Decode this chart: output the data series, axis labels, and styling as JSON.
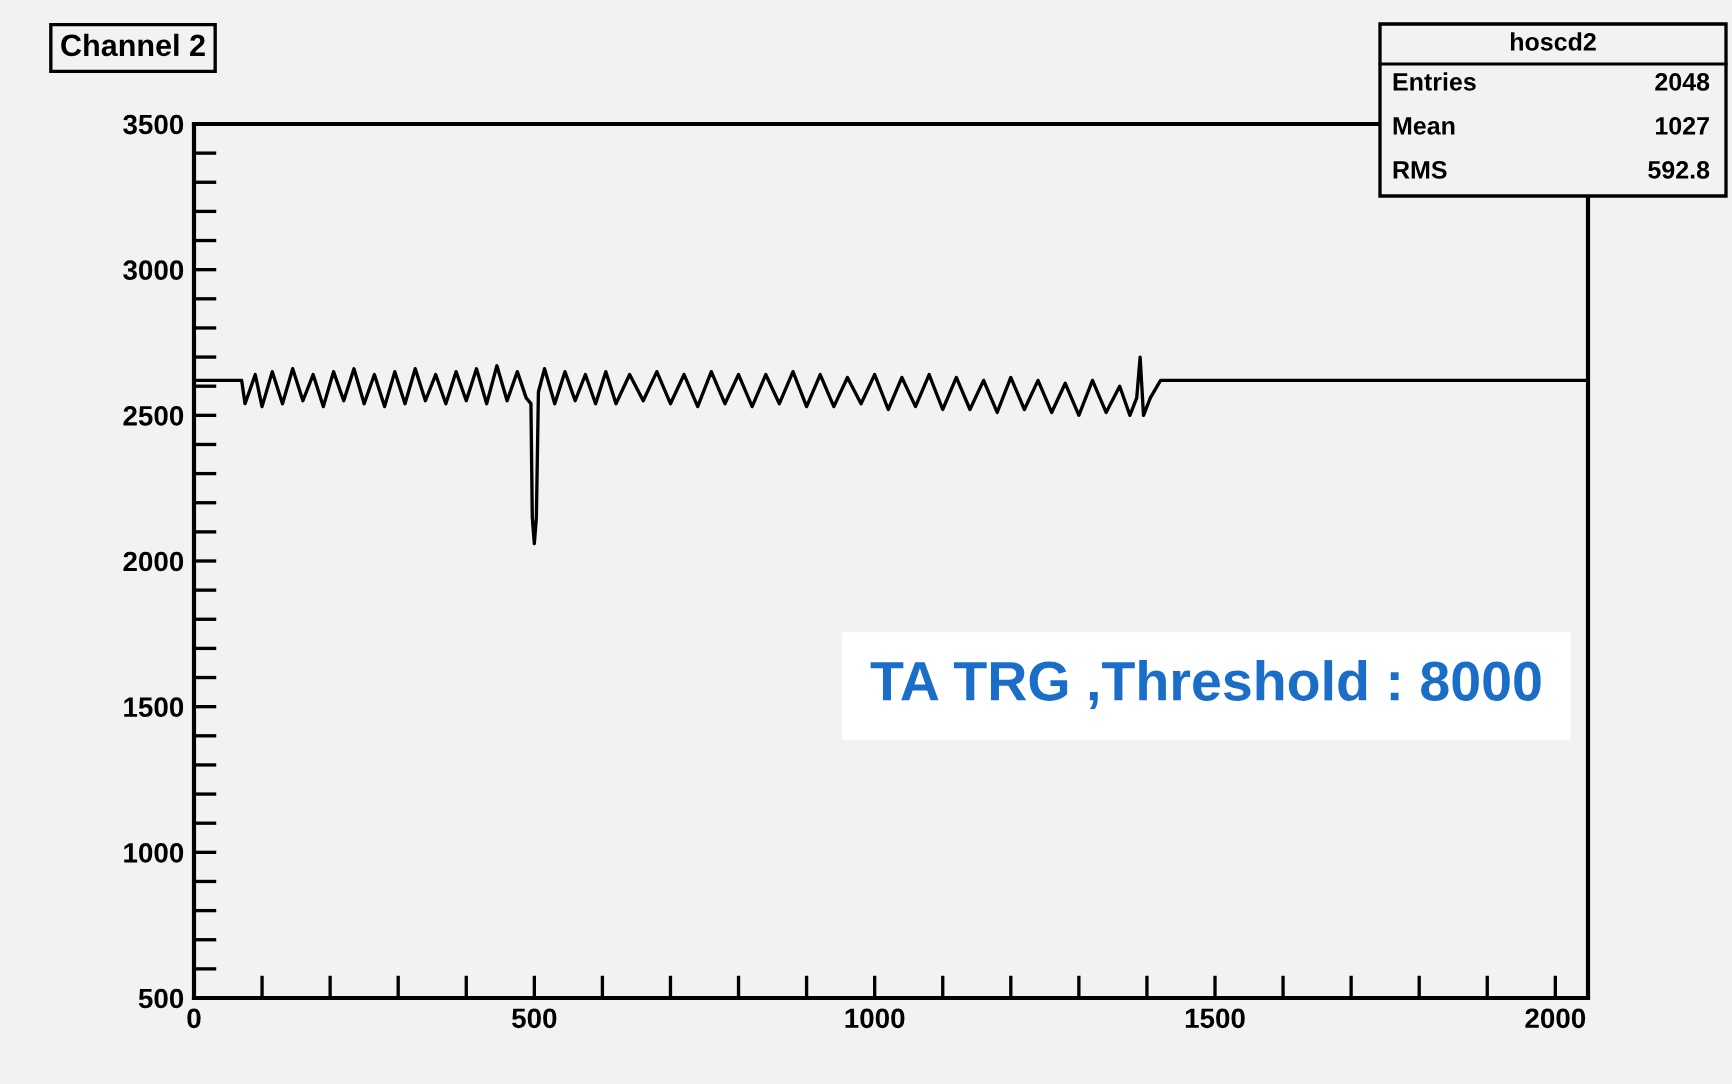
{
  "chart_data": {
    "type": "line",
    "title": "Channel 2",
    "annotations": [
      "hoscd2",
      "Entries",
      "2048",
      "Mean",
      "1027",
      "RMS",
      "592.8",
      "TA TRG ,Threshold : 8000"
    ],
    "series": [
      {
        "color": "#000000",
        "x": [
          0,
          70,
          75,
          90,
          100,
          115,
          130,
          145,
          160,
          175,
          190,
          205,
          220,
          235,
          250,
          265,
          280,
          295,
          310,
          325,
          340,
          355,
          370,
          385,
          400,
          415,
          430,
          445,
          460,
          475,
          488,
          495,
          497,
          500,
          503,
          506,
          515,
          530,
          545,
          560,
          575,
          590,
          605,
          620,
          640,
          660,
          680,
          700,
          720,
          740,
          760,
          780,
          800,
          820,
          840,
          860,
          880,
          900,
          920,
          940,
          960,
          980,
          1000,
          1020,
          1040,
          1060,
          1080,
          1100,
          1120,
          1140,
          1160,
          1180,
          1200,
          1220,
          1240,
          1260,
          1280,
          1300,
          1320,
          1340,
          1360,
          1375,
          1385,
          1390,
          1395,
          1405,
          1420,
          2048
        ],
        "values": [
          2620,
          2620,
          2540,
          2640,
          2530,
          2650,
          2540,
          2660,
          2550,
          2640,
          2530,
          2650,
          2550,
          2660,
          2540,
          2640,
          2530,
          2650,
          2540,
          2660,
          2550,
          2640,
          2540,
          2650,
          2550,
          2660,
          2540,
          2670,
          2550,
          2650,
          2560,
          2540,
          2150,
          2060,
          2150,
          2580,
          2660,
          2540,
          2650,
          2550,
          2640,
          2540,
          2650,
          2540,
          2640,
          2550,
          2650,
          2540,
          2640,
          2530,
          2650,
          2540,
          2640,
          2530,
          2640,
          2540,
          2650,
          2530,
          2640,
          2530,
          2630,
          2540,
          2640,
          2520,
          2630,
          2530,
          2640,
          2520,
          2630,
          2520,
          2620,
          2510,
          2630,
          2520,
          2620,
          2510,
          2610,
          2500,
          2620,
          2510,
          2600,
          2500,
          2560,
          2700,
          2500,
          2560,
          2620,
          2620
        ]
      }
    ],
    "xlim": [
      0,
      2048
    ],
    "xticks": [
      0,
      {
        "value": 100,
        "label": null
      },
      {
        "value": 200,
        "label": null
      },
      {
        "value": 300,
        "label": null
      },
      {
        "value": 400,
        "label": null
      },
      500,
      {
        "value": 600,
        "label": null
      },
      {
        "value": 700,
        "label": null
      },
      {
        "value": 800,
        "label": null
      },
      {
        "value": 900,
        "label": null
      },
      1000,
      {
        "value": 1100,
        "label": null
      },
      {
        "value": 1200,
        "label": null
      },
      {
        "value": 1300,
        "label": null
      },
      {
        "value": 1400,
        "label": null
      },
      1500,
      {
        "value": 1600,
        "label": null
      },
      {
        "value": 1700,
        "label": null
      },
      {
        "value": 1800,
        "label": null
      },
      {
        "value": 1900,
        "label": null
      },
      2000
    ],
    "ylim": [
      500,
      3500
    ],
    "yticks": [
      500,
      {
        "value": 600,
        "label": null
      },
      {
        "value": 700,
        "label": null
      },
      {
        "value": 800,
        "label": null
      },
      {
        "value": 900,
        "label": null
      },
      1000,
      {
        "value": 1100,
        "label": null
      },
      {
        "value": 1200,
        "label": null
      },
      {
        "value": 1300,
        "label": null
      },
      {
        "value": 1400,
        "label": null
      },
      1500,
      {
        "value": 1600,
        "label": null
      },
      {
        "value": 1700,
        "label": null
      },
      {
        "value": 1800,
        "label": null
      },
      {
        "value": 1900,
        "label": null
      },
      2000,
      {
        "value": 2100,
        "label": null
      },
      {
        "value": 2200,
        "label": null
      },
      {
        "value": 2300,
        "label": null
      },
      {
        "value": 2400,
        "label": null
      },
      2500,
      {
        "value": 2600,
        "label": null
      },
      {
        "value": 2700,
        "label": null
      },
      {
        "value": 2800,
        "label": null
      },
      {
        "value": 2900,
        "label": null
      },
      3000,
      {
        "value": 3100,
        "label": null
      },
      {
        "value": 3200,
        "label": null
      },
      {
        "value": 3300,
        "label": null
      },
      {
        "value": 3400,
        "label": null
      },
      3500
    ],
    "grid": false
  }
}
